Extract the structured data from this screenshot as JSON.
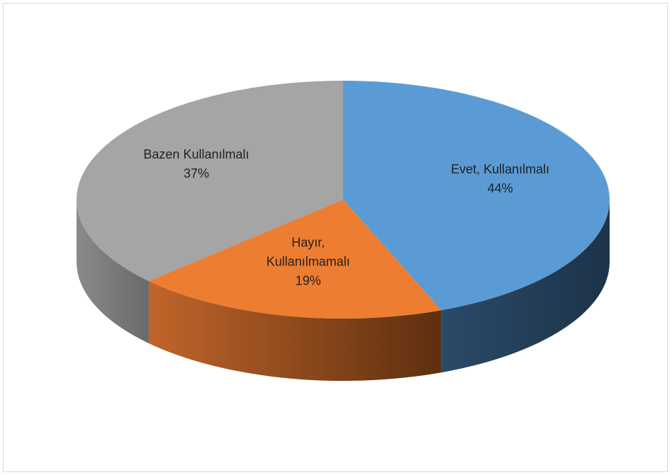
{
  "chart_data": {
    "type": "pie3d",
    "categories": [
      "Evet, Kullanılmalı",
      "Hayır, Kullanılmamalı",
      "Bazen Kullanılmalı"
    ],
    "values": [
      44,
      19,
      37
    ],
    "value_labels": [
      "44%",
      "19%",
      "37%"
    ],
    "colors": [
      "#5b9bd5",
      "#ed7d31",
      "#a5a5a5"
    ]
  }
}
